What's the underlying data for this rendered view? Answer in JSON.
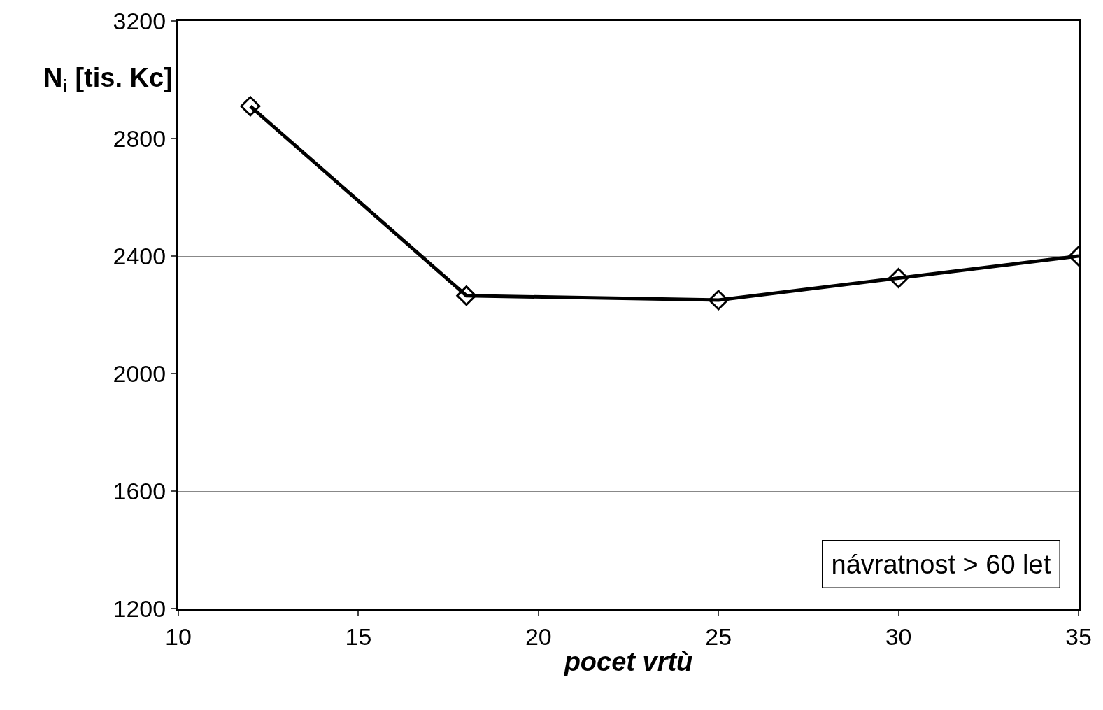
{
  "chart_data": {
    "type": "line",
    "xlabel": "pocet vrtù",
    "ylabel": "N$_{i}$ [tis. Kc]",
    "x": [
      12,
      18,
      25,
      30,
      35
    ],
    "series": [
      {
        "color": "#000000",
        "values": [
          2910,
          2265,
          2250,
          2325,
          2400
        ]
      }
    ],
    "xlim": [
      10,
      35
    ],
    "xticks": [
      10,
      15,
      20,
      25,
      30,
      35
    ],
    "ylim": [
      1200,
      3200
    ],
    "yticks": [
      1200,
      1600,
      2000,
      2400,
      2800,
      3200
    ],
    "grid": "y",
    "marker": "diamond",
    "line_style": "solid",
    "annotations": [
      "návratnost > 60 let"
    ]
  }
}
